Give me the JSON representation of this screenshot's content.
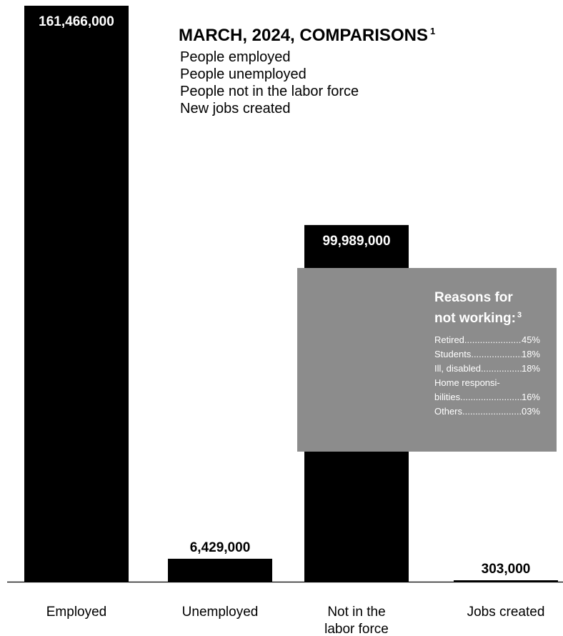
{
  "chart_data": {
    "type": "bar",
    "title": "MARCH, 2024, COMPARISONS",
    "title_footnote": "1",
    "legend": [
      "People employed",
      "People unemployed",
      "People not in the labor force",
      "New jobs created"
    ],
    "categories": [
      "Employed",
      "Unemployed",
      "Not in the labor force",
      "Jobs created"
    ],
    "category_lines": [
      [
        "Employed"
      ],
      [
        "Unemployed"
      ],
      [
        "Not in the",
        "labor force"
      ],
      [
        "Jobs created"
      ]
    ],
    "values": [
      161466000,
      6429000,
      99989000,
      303000
    ],
    "value_labels": [
      "161,466,000",
      "6,429,000",
      "99,989,000",
      "303,000"
    ],
    "ylim": [
      0,
      161466000
    ],
    "grid": false,
    "bar_color": "#000000"
  },
  "reasons": {
    "title_line1": "Reasons for",
    "title_line2": "not working:",
    "footnote": "3",
    "box_color": "#8c8c8c",
    "items": [
      {
        "label": "Retired",
        "value": "45%"
      },
      {
        "label": "Students",
        "value": "18%"
      },
      {
        "label": "Ill, disabled",
        "value": "18%"
      },
      {
        "label_line1": "Home responsi-",
        "label": "bilities",
        "value": "16%"
      },
      {
        "label": "Others",
        "value": "03%"
      }
    ]
  }
}
